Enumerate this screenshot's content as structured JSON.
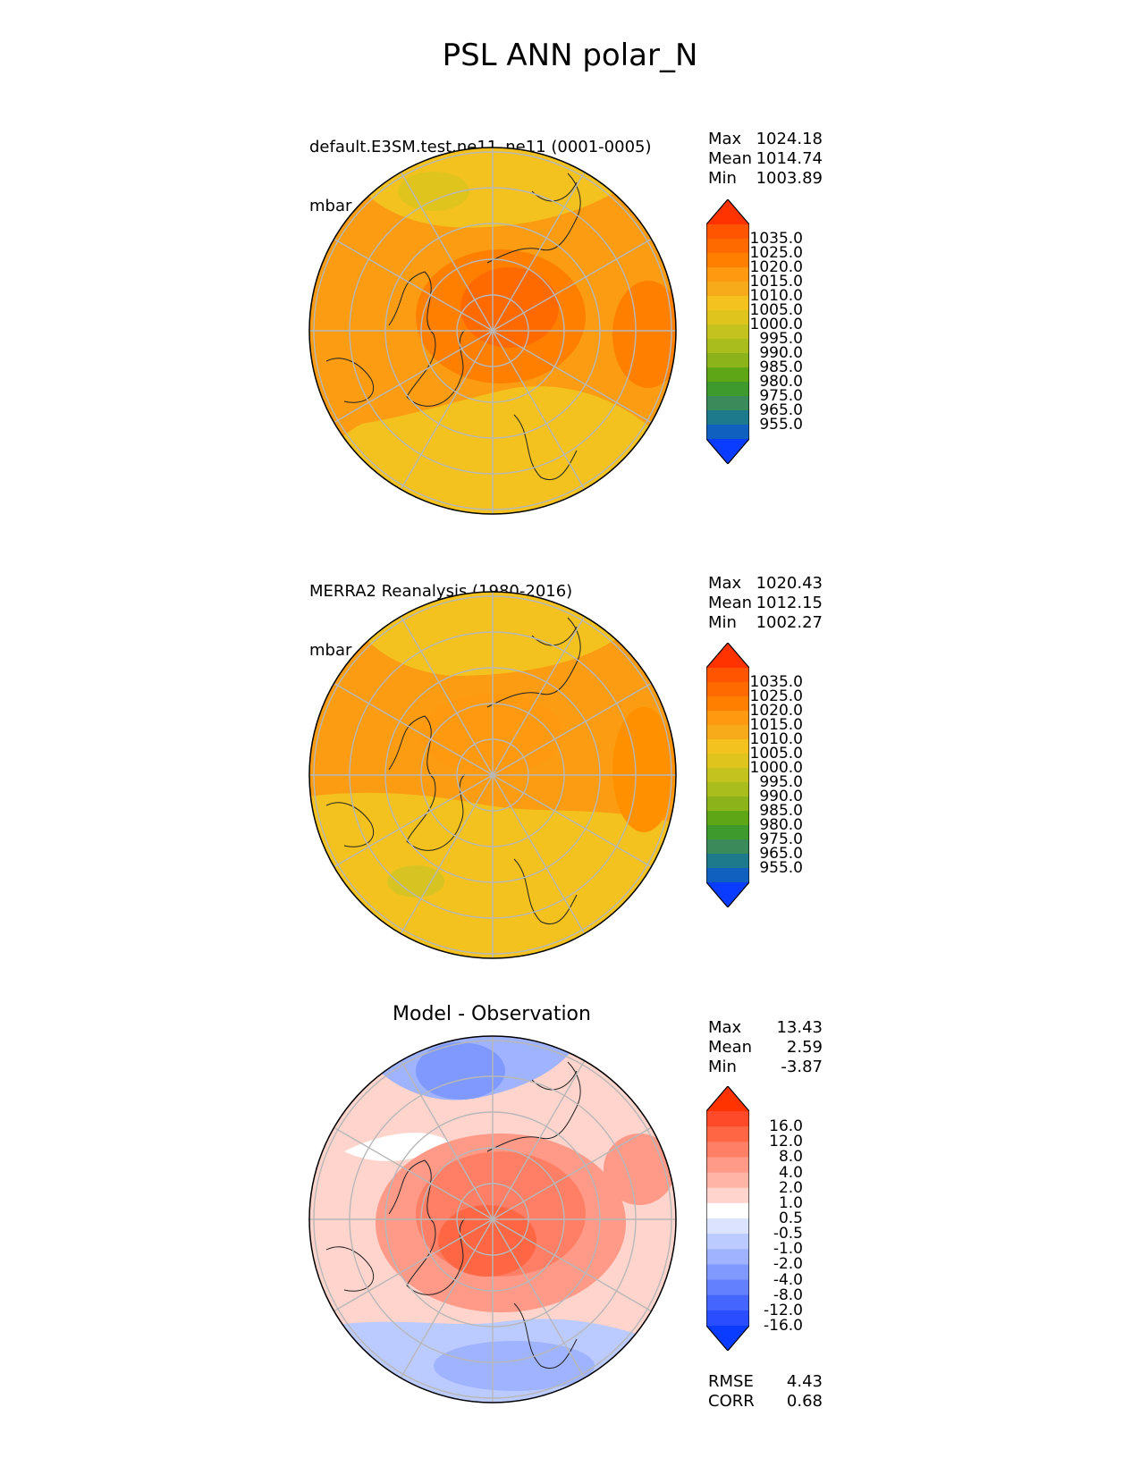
{
  "chart_data": {
    "type": "polar_contour_map",
    "title": "PSL ANN polar_N",
    "panels": [
      {
        "name": "test",
        "title_lines": [
          "default.E3SM.test.ne11_ne11 (0001-0005)",
          "mbar"
        ],
        "stats": [
          {
            "label": "Max",
            "value": "1024.18"
          },
          {
            "label": "Mean",
            "value": "1014.74"
          },
          {
            "label": "Min",
            "value": "1003.89"
          }
        ],
        "colorbar": {
          "ticks": [
            "1035.0",
            "1025.0",
            "1020.0",
            "1015.0",
            "1010.0",
            "1005.0",
            "1000.0",
            "995.0",
            "990.0",
            "985.0",
            "980.0",
            "975.0",
            "965.0",
            "955.0"
          ],
          "colors": [
            "#ff3300",
            "#ff5500",
            "#ff6a00",
            "#ff8000",
            "#ff9a10",
            "#f7aa1a",
            "#f4c21e",
            "#e0c41e",
            "#c4c21e",
            "#a9bd1c",
            "#8cb41a",
            "#5ea615",
            "#3f9a2e",
            "#3a8a5a",
            "#1c7a8c",
            "#1060c0",
            "#0a3cff"
          ]
        }
      },
      {
        "name": "reference",
        "title_lines": [
          "MERRA2 Reanalysis (1980-2016)",
          "mbar"
        ],
        "stats": [
          {
            "label": "Max",
            "value": "1020.43"
          },
          {
            "label": "Mean",
            "value": "1012.15"
          },
          {
            "label": "Min",
            "value": "1002.27"
          }
        ],
        "colorbar": {
          "ticks": [
            "1035.0",
            "1025.0",
            "1020.0",
            "1015.0",
            "1010.0",
            "1005.0",
            "1000.0",
            "995.0",
            "990.0",
            "985.0",
            "980.0",
            "975.0",
            "965.0",
            "955.0"
          ],
          "colors": [
            "#ff3300",
            "#ff5500",
            "#ff6a00",
            "#ff8000",
            "#ff9a10",
            "#f7aa1a",
            "#f4c21e",
            "#e0c41e",
            "#c4c21e",
            "#a9bd1c",
            "#8cb41a",
            "#5ea615",
            "#3f9a2e",
            "#3a8a5a",
            "#1c7a8c",
            "#1060c0",
            "#0a3cff"
          ]
        }
      },
      {
        "name": "difference",
        "title_center": "Model - Observation",
        "stats": [
          {
            "label": "Max",
            "value": "13.43"
          },
          {
            "label": "Mean",
            "value": "2.59"
          },
          {
            "label": "Min",
            "value": "-3.87"
          }
        ],
        "metrics": [
          {
            "label": "RMSE",
            "value": "4.43"
          },
          {
            "label": "CORR",
            "value": "0.68"
          }
        ],
        "colorbar": {
          "ticks": [
            "16.0",
            "12.0",
            "8.0",
            "4.0",
            "2.0",
            "1.0",
            "0.5",
            "-0.5",
            "-1.0",
            "-2.0",
            "-4.0",
            "-8.0",
            "-12.0",
            "-16.0"
          ],
          "colors": [
            "#ff3300",
            "#ff4a2a",
            "#ff6644",
            "#ff7f66",
            "#ff9988",
            "#ffb4a6",
            "#ffd4cc",
            "#ffffff",
            "#dbe3ff",
            "#bccbff",
            "#9fb3ff",
            "#8099ff",
            "#6380ff",
            "#4466ff",
            "#2a4dff",
            "#0a3cff"
          ]
        }
      }
    ]
  }
}
